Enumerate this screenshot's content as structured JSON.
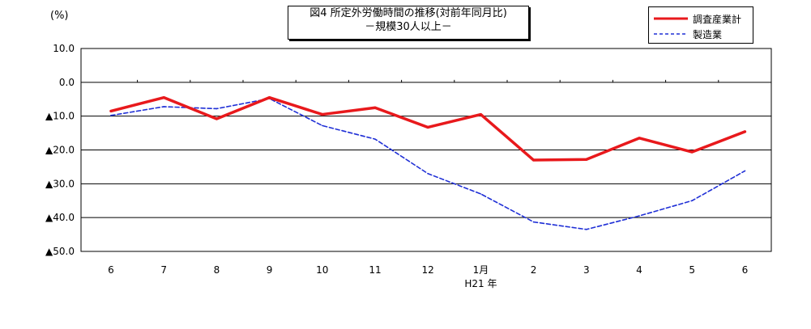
{
  "title": {
    "line1": "図4 所定外労働時間の推移(対前年同月比)",
    "line2": "－規模30人以上－"
  },
  "unit_label": "(%)",
  "colors": {
    "total": "#e8191c",
    "manufacturing": "#1f2fd6"
  },
  "chart_data": {
    "type": "line",
    "x": [
      "6",
      "7",
      "8",
      "9",
      "10",
      "11",
      "12",
      "1月",
      "2",
      "3",
      "4",
      "5",
      "6"
    ],
    "x_sublabels": [
      "",
      "",
      "",
      "",
      "",
      "",
      "",
      "H21 年",
      "",
      "",
      "",
      "",
      ""
    ],
    "series": [
      {
        "name": "調査産業計",
        "style": "solid",
        "values": [
          -8.5,
          -4.5,
          -10.8,
          -4.5,
          -9.5,
          -7.5,
          -13.3,
          -9.5,
          -23.0,
          -22.8,
          -16.5,
          -20.6,
          -14.6
        ]
      },
      {
        "name": "製造業",
        "style": "dashed",
        "values": [
          -9.8,
          -7.2,
          -7.8,
          -4.8,
          -12.8,
          -16.8,
          -27.0,
          -33.0,
          -41.3,
          -43.5,
          -39.5,
          -35.0,
          -26.2
        ]
      }
    ],
    "yticks": [
      10,
      0,
      -10,
      -20,
      -30,
      -40,
      -50
    ],
    "ytick_labels": [
      "10.0",
      "0.0",
      "▲10.0",
      "▲20.0",
      "▲30.0",
      "▲40.0",
      "▲50.0"
    ],
    "ylim": [
      -50,
      10
    ],
    "grid": true,
    "legend": "top-right"
  }
}
